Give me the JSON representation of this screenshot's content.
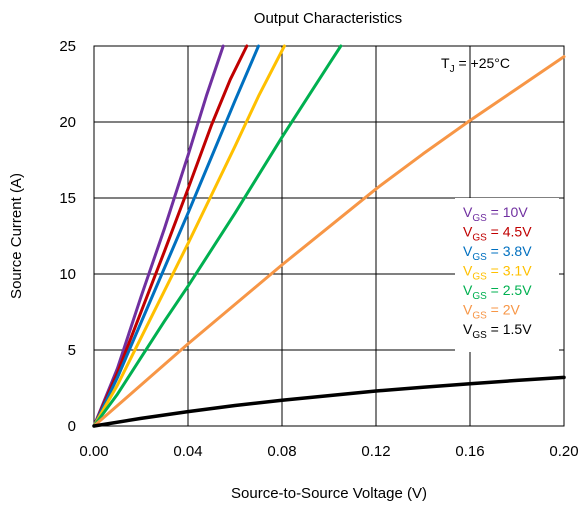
{
  "chart_data": {
    "type": "line",
    "title": "Output Characteristics",
    "xlabel": "Source-to-Source Voltage (V)",
    "ylabel": "Source Current (A)",
    "xlim": [
      0,
      0.2
    ],
    "ylim": [
      0,
      25
    ],
    "x_ticks": [
      0,
      0.04,
      0.08,
      0.12,
      0.16,
      0.2
    ],
    "x_tick_labels": [
      "0.00",
      "0.04",
      "0.08",
      "0.12",
      "0.16",
      "0.20"
    ],
    "y_ticks": [
      0,
      5,
      10,
      15,
      20,
      25
    ],
    "y_tick_labels": [
      "0",
      "5",
      "10",
      "15",
      "20",
      "25"
    ],
    "grid": true,
    "legend_position": "right",
    "annotation": {
      "main": "T",
      "sub": "J",
      "rest": " = +25°C"
    },
    "series": [
      {
        "label_main": "V",
        "label_sub": "GS",
        "label_rest": " = 10V",
        "color": "#7030A0",
        "points": [
          [
            0,
            0
          ],
          [
            0.01,
            3.8
          ],
          [
            0.02,
            8.5
          ],
          [
            0.03,
            13.0
          ],
          [
            0.04,
            17.8
          ],
          [
            0.048,
            21.8
          ],
          [
            0.055,
            25.0
          ]
        ]
      },
      {
        "label_main": "V",
        "label_sub": "GS",
        "label_rest": " = 4.5V",
        "color": "#C00000",
        "points": [
          [
            0,
            0
          ],
          [
            0.01,
            3.5
          ],
          [
            0.02,
            7.5
          ],
          [
            0.03,
            11.5
          ],
          [
            0.04,
            15.6
          ],
          [
            0.05,
            19.8
          ],
          [
            0.058,
            22.8
          ],
          [
            0.065,
            25.0
          ]
        ]
      },
      {
        "label_main": "V",
        "label_sub": "GS",
        "label_rest": " = 3.8V",
        "color": "#0070C0",
        "points": [
          [
            0,
            0
          ],
          [
            0.01,
            3.2
          ],
          [
            0.02,
            6.8
          ],
          [
            0.03,
            10.4
          ],
          [
            0.04,
            14.0
          ],
          [
            0.05,
            17.7
          ],
          [
            0.06,
            21.4
          ],
          [
            0.07,
            25.0
          ]
        ]
      },
      {
        "label_main": "V",
        "label_sub": "GS",
        "label_rest": " = 3.1V",
        "color": "#FFC000",
        "points": [
          [
            0,
            0
          ],
          [
            0.01,
            2.7
          ],
          [
            0.02,
            5.8
          ],
          [
            0.03,
            8.9
          ],
          [
            0.04,
            12.0
          ],
          [
            0.05,
            15.2
          ],
          [
            0.06,
            18.4
          ],
          [
            0.07,
            21.7
          ],
          [
            0.081,
            25.0
          ]
        ]
      },
      {
        "label_main": "V",
        "label_sub": "GS",
        "label_rest": " = 2.5V",
        "color": "#00B050",
        "points": [
          [
            0,
            0
          ],
          [
            0.01,
            2.1
          ],
          [
            0.02,
            4.5
          ],
          [
            0.03,
            6.9
          ],
          [
            0.04,
            9.2
          ],
          [
            0.05,
            11.6
          ],
          [
            0.06,
            14.0
          ],
          [
            0.07,
            16.5
          ],
          [
            0.08,
            19.0
          ],
          [
            0.09,
            21.4
          ],
          [
            0.1,
            23.8
          ],
          [
            0.105,
            25.0
          ]
        ]
      },
      {
        "label_main": "V",
        "label_sub": "GS",
        "label_rest": " = 2V",
        "color": "#F79646",
        "points": [
          [
            0,
            0
          ],
          [
            0.02,
            2.7
          ],
          [
            0.04,
            5.4
          ],
          [
            0.06,
            8.0
          ],
          [
            0.08,
            10.6
          ],
          [
            0.1,
            13.1
          ],
          [
            0.12,
            15.6
          ],
          [
            0.14,
            17.9
          ],
          [
            0.16,
            20.1
          ],
          [
            0.18,
            22.2
          ],
          [
            0.2,
            24.3
          ]
        ]
      },
      {
        "label_main": "V",
        "label_sub": "GS",
        "label_rest": " = 1.5V",
        "color": "#000000",
        "points": [
          [
            0,
            0
          ],
          [
            0.02,
            0.5
          ],
          [
            0.04,
            0.95
          ],
          [
            0.06,
            1.35
          ],
          [
            0.08,
            1.7
          ],
          [
            0.1,
            2.0
          ],
          [
            0.12,
            2.3
          ],
          [
            0.14,
            2.55
          ],
          [
            0.16,
            2.78
          ],
          [
            0.18,
            3.0
          ],
          [
            0.2,
            3.2
          ]
        ]
      }
    ]
  }
}
